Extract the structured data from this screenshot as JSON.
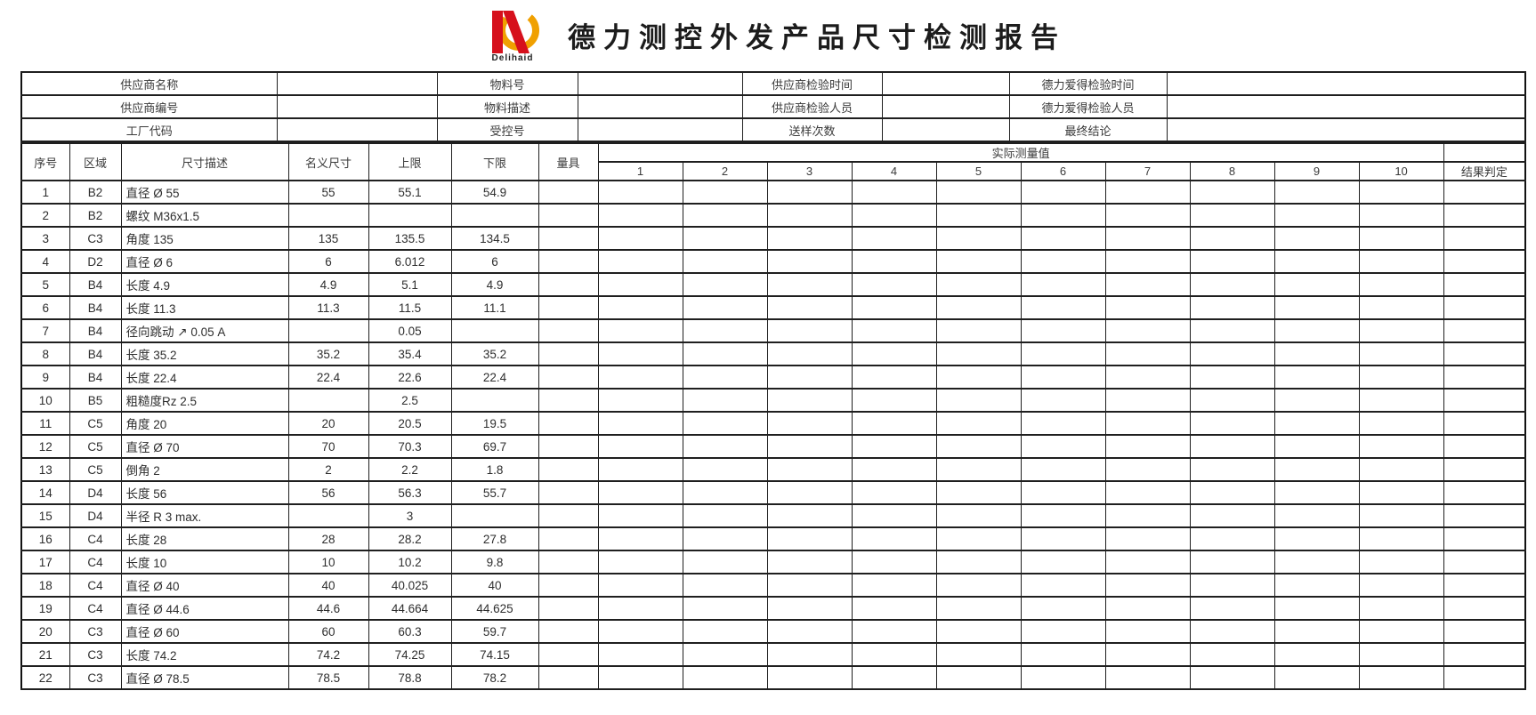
{
  "header": {
    "title": "德力测控外发产品尺寸检测报告",
    "logo_text": "Delihaid"
  },
  "info": {
    "rows": [
      [
        "供应商名称",
        "",
        "物料号",
        "",
        "供应商检验时间",
        "",
        "德力爱得检验时间",
        ""
      ],
      [
        "供应商编号",
        "",
        "物料描述",
        "",
        "供应商检验人员",
        "",
        "德力爱得检验人员",
        ""
      ],
      [
        "工厂代码",
        "",
        "受控号",
        "",
        "送样次数",
        "",
        "最终结论",
        ""
      ]
    ]
  },
  "table": {
    "columns": [
      "序号",
      "区域",
      "尺寸描述",
      "名义尺寸",
      "上限",
      "下限",
      "量具"
    ],
    "measure_header": "实际测量值",
    "measure_cols": [
      "1",
      "2",
      "3",
      "4",
      "5",
      "6",
      "7",
      "8",
      "9",
      "10"
    ],
    "result_header": "结果判定",
    "rows": [
      {
        "no": "1",
        "area": "B2",
        "desc": "直径 Ø 55",
        "nominal": "55",
        "upper": "55.1",
        "lower": "54.9"
      },
      {
        "no": "2",
        "area": "B2",
        "desc": "螺纹 M36x1.5",
        "nominal": "",
        "upper": "",
        "lower": ""
      },
      {
        "no": "3",
        "area": "C3",
        "desc": "角度 135",
        "nominal": "135",
        "upper": "135.5",
        "lower": "134.5"
      },
      {
        "no": "4",
        "area": "D2",
        "desc": "直径 Ø 6",
        "nominal": "6",
        "upper": "6.012",
        "lower": "6"
      },
      {
        "no": "5",
        "area": "B4",
        "desc": "长度 4.9",
        "nominal": "4.9",
        "upper": "5.1",
        "lower": "4.9"
      },
      {
        "no": "6",
        "area": "B4",
        "desc": "长度 11.3",
        "nominal": "11.3",
        "upper": "11.5",
        "lower": "11.1"
      },
      {
        "no": "7",
        "area": "B4",
        "desc": "径向跳动 ↗ 0.05 A",
        "nominal": "",
        "upper": "0.05",
        "lower": ""
      },
      {
        "no": "8",
        "area": "B4",
        "desc": "长度 35.2",
        "nominal": "35.2",
        "upper": "35.4",
        "lower": "35.2"
      },
      {
        "no": "9",
        "area": "B4",
        "desc": "长度 22.4",
        "nominal": "22.4",
        "upper": "22.6",
        "lower": "22.4"
      },
      {
        "no": "10",
        "area": "B5",
        "desc": "粗糙度Rz 2.5",
        "nominal": "",
        "upper": "2.5",
        "lower": ""
      },
      {
        "no": "11",
        "area": "C5",
        "desc": "角度 20",
        "nominal": "20",
        "upper": "20.5",
        "lower": "19.5"
      },
      {
        "no": "12",
        "area": "C5",
        "desc": "直径 Ø 70",
        "nominal": "70",
        "upper": "70.3",
        "lower": "69.7"
      },
      {
        "no": "13",
        "area": "C5",
        "desc": "倒角 2",
        "nominal": "2",
        "upper": "2.2",
        "lower": "1.8"
      },
      {
        "no": "14",
        "area": "D4",
        "desc": "长度 56",
        "nominal": "56",
        "upper": "56.3",
        "lower": "55.7"
      },
      {
        "no": "15",
        "area": "D4",
        "desc": "半径 R 3 max.",
        "nominal": "",
        "upper": "3",
        "lower": ""
      },
      {
        "no": "16",
        "area": "C4",
        "desc": "长度 28",
        "nominal": "28",
        "upper": "28.2",
        "lower": "27.8"
      },
      {
        "no": "17",
        "area": "C4",
        "desc": "长度 10",
        "nominal": "10",
        "upper": "10.2",
        "lower": "9.8"
      },
      {
        "no": "18",
        "area": "C4",
        "desc": "直径 Ø 40",
        "nominal": "40",
        "upper": "40.025",
        "lower": "40"
      },
      {
        "no": "19",
        "area": "C4",
        "desc": "直径 Ø 44.6",
        "nominal": "44.6",
        "upper": "44.664",
        "lower": "44.625"
      },
      {
        "no": "20",
        "area": "C3",
        "desc": "直径 Ø 60",
        "nominal": "60",
        "upper": "60.3",
        "lower": "59.7"
      },
      {
        "no": "21",
        "area": "C3",
        "desc": "长度 74.2",
        "nominal": "74.2",
        "upper": "74.25",
        "lower": "74.15"
      },
      {
        "no": "22",
        "area": "C3",
        "desc": "直径 Ø 78.5",
        "nominal": "78.5",
        "upper": "78.8",
        "lower": "78.2"
      }
    ]
  },
  "colors": {
    "logo_red": "#d6101c",
    "logo_orange": "#f0a000",
    "border": "#1f1f1f"
  }
}
